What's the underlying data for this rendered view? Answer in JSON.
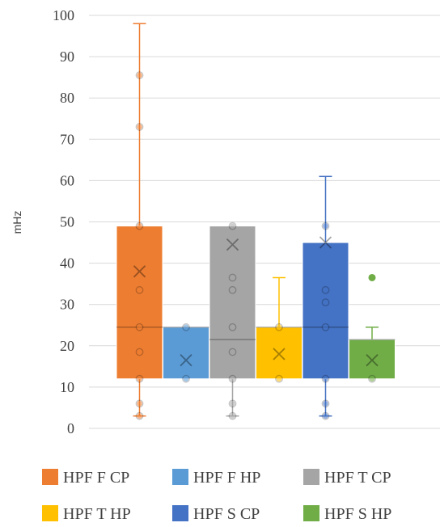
{
  "chart_data": {
    "type": "box",
    "ylabel": "mHz",
    "ylim": [
      0,
      100
    ],
    "yticks": [
      0,
      10,
      20,
      30,
      40,
      50,
      60,
      70,
      80,
      90,
      100
    ],
    "grid": true,
    "legend_position": "bottom",
    "series": [
      {
        "name": "HPF F CP",
        "color": "#ED7D31",
        "min": 3,
        "q1": 12,
        "median": 24.5,
        "q3": 49,
        "max": 98,
        "mean": 38,
        "points": [
          3,
          6,
          12,
          18.5,
          24.5,
          33.5,
          49,
          73,
          85.5
        ],
        "outliers": []
      },
      {
        "name": "HPF F HP",
        "color": "#5B9BD5",
        "min": 12,
        "q1": 12,
        "median": 24.5,
        "q3": 24.5,
        "max": 24.5,
        "mean": 16.5,
        "points": [
          12,
          24.5
        ],
        "outliers": []
      },
      {
        "name": "HPF T CP",
        "color": "#A5A5A5",
        "min": 3,
        "q1": 12,
        "median": 21.5,
        "q3": 49,
        "max": 49,
        "mean": 44.5,
        "points": [
          3,
          6,
          12,
          18.5,
          24.5,
          33.5,
          36.5,
          49
        ],
        "outliers": []
      },
      {
        "name": "HPF T HP",
        "color": "#FFC000",
        "min": 12,
        "q1": 12,
        "median": 24.5,
        "q3": 24.5,
        "max": 36.5,
        "mean": 18,
        "points": [
          12,
          24.5
        ],
        "outliers": []
      },
      {
        "name": "HPF S CP",
        "color": "#4472C4",
        "min": 3,
        "q1": 12,
        "median": 24.5,
        "q3": 45,
        "max": 61,
        "mean": 45,
        "points": [
          3,
          6,
          12,
          24.5,
          30.5,
          33.5,
          49
        ],
        "outliers": []
      },
      {
        "name": "HPF S HP",
        "color": "#70AD47",
        "min": 12,
        "q1": 12,
        "median": 21.5,
        "q3": 21.5,
        "max": 24.5,
        "mean": 16.5,
        "points": [
          12
        ],
        "outliers": [
          36.5
        ]
      }
    ]
  }
}
